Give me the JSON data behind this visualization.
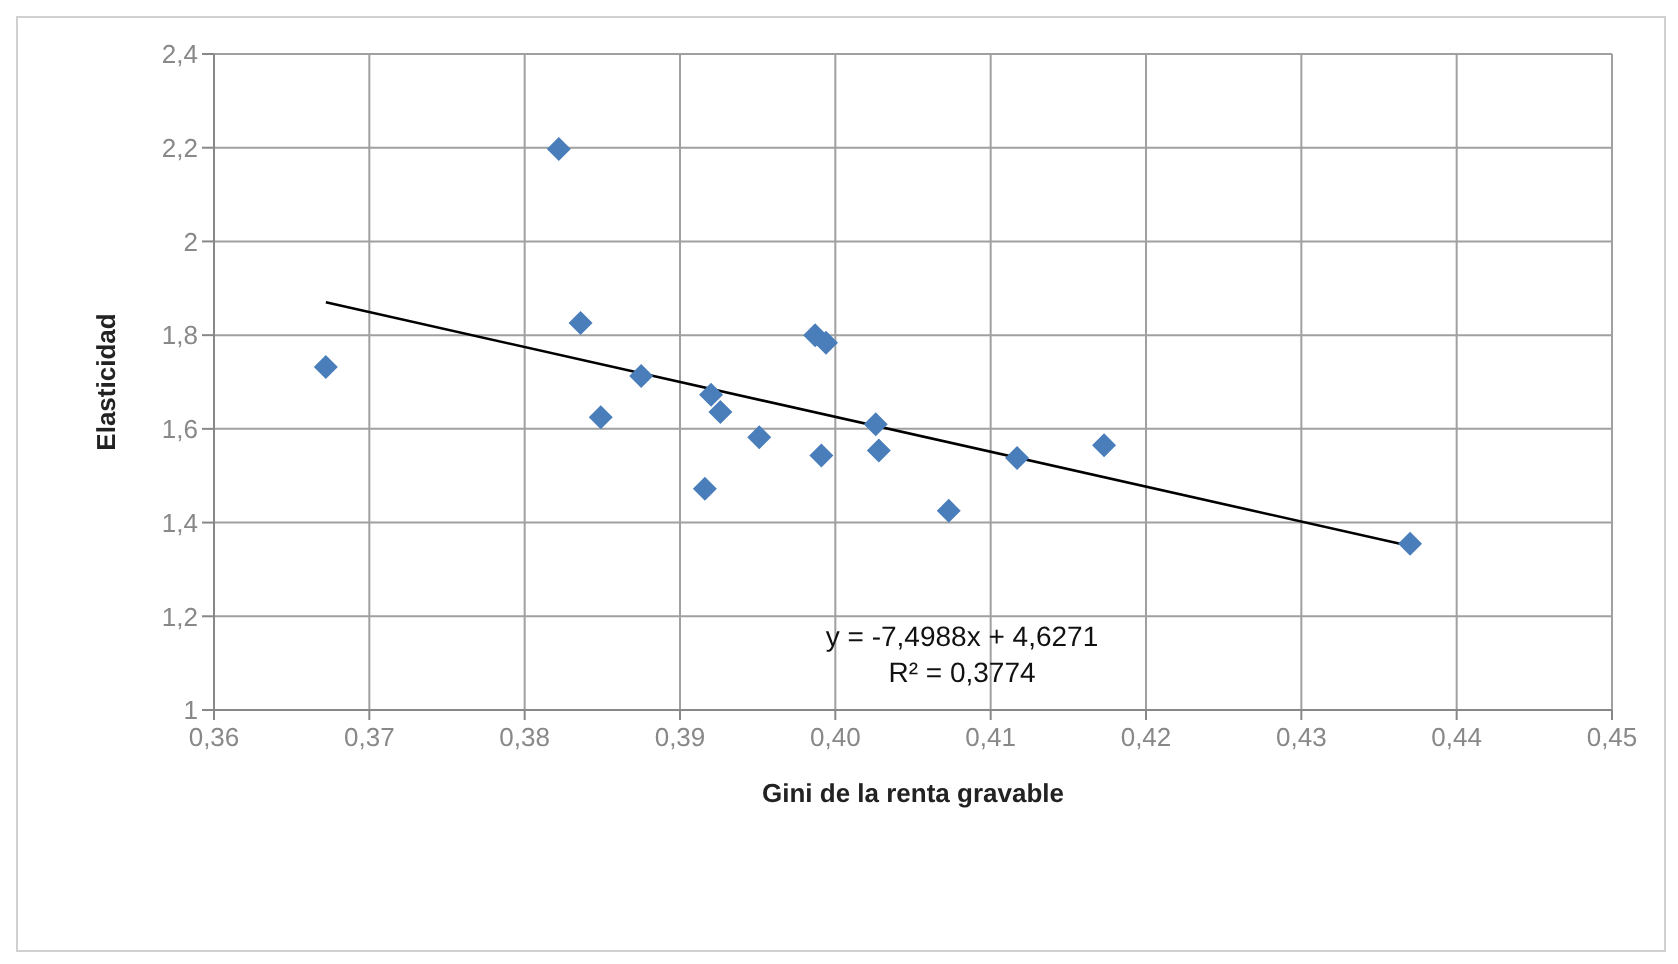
{
  "chart_data": {
    "type": "scatter",
    "xlabel": "Gini de la renta gravable",
    "ylabel": "Elasticidad",
    "xlim": [
      0.36,
      0.45
    ],
    "ylim": [
      1,
      2.4
    ],
    "xticks": [
      {
        "value": 0.36,
        "label": "0,36"
      },
      {
        "value": 0.37,
        "label": "0,37"
      },
      {
        "value": 0.38,
        "label": "0,38"
      },
      {
        "value": 0.39,
        "label": "0,39"
      },
      {
        "value": 0.4,
        "label": "0,40"
      },
      {
        "value": 0.41,
        "label": "0,41"
      },
      {
        "value": 0.42,
        "label": "0,42"
      },
      {
        "value": 0.43,
        "label": "0,43"
      },
      {
        "value": 0.44,
        "label": "0,44"
      },
      {
        "value": 0.45,
        "label": "0,45"
      }
    ],
    "yticks": [
      {
        "value": 1,
        "label": "1"
      },
      {
        "value": 1.2,
        "label": "1,2"
      },
      {
        "value": 1.4,
        "label": "1,4"
      },
      {
        "value": 1.6,
        "label": "1,6"
      },
      {
        "value": 1.8,
        "label": "1,8"
      },
      {
        "value": 2,
        "label": "2"
      },
      {
        "value": 2.2,
        "label": "2,2"
      },
      {
        "value": 2.4,
        "label": "2,4"
      }
    ],
    "grid": true,
    "legend": false,
    "series": [
      {
        "color": "#4a7ebb",
        "marker": "diamond",
        "x": [
          0.3672,
          0.3822,
          0.3836,
          0.3849,
          0.3875,
          0.392,
          0.3926,
          0.3916,
          0.3951,
          0.3987,
          0.3994,
          0.3991,
          0.4026,
          0.4028,
          0.4073,
          0.4117,
          0.4173,
          0.437
        ],
        "values": [
          1.732,
          2.197,
          1.826,
          1.625,
          1.713,
          1.673,
          1.636,
          1.472,
          1.582,
          1.8,
          1.784,
          1.543,
          1.61,
          1.554,
          1.425,
          1.538,
          1.565,
          1.355
        ]
      },
      {
        "type": "line",
        "color": "#000000",
        "marker": "none",
        "x": [
          0.3672,
          0.437
        ],
        "values": [
          1.87,
          1.35
        ]
      }
    ],
    "annotations": [
      "y = -7,4988x + 4,6271",
      "R² = 0,3774"
    ]
  }
}
